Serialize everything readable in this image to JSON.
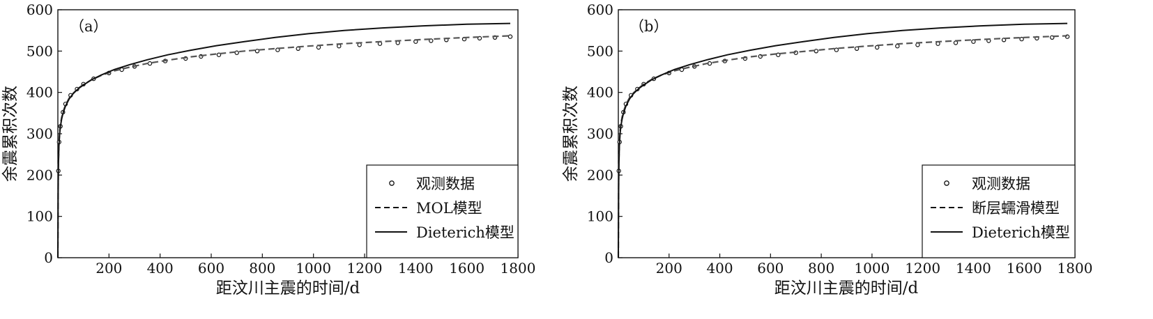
{
  "chart_data": [
    {
      "type": "line",
      "panel_label": "（a）",
      "xlabel": "距汶川主震的时间/d",
      "ylabel": "余震累积次数",
      "xlim": [
        0,
        1800
      ],
      "ylim": [
        0,
        600
      ],
      "x_ticks": [
        200,
        400,
        600,
        800,
        1000,
        1200,
        1400,
        1600,
        1800
      ],
      "y_ticks": [
        0,
        100,
        200,
        300,
        400,
        500,
        600
      ],
      "legend_position": "bottom-right",
      "series": [
        {
          "name": "观测数据",
          "style": "markers",
          "x": [
            2,
            5,
            10,
            20,
            30,
            50,
            75,
            100,
            140,
            200,
            250,
            300,
            360,
            420,
            500,
            560,
            630,
            700,
            780,
            860,
            940,
            1020,
            1100,
            1180,
            1260,
            1330,
            1400,
            1460,
            1520,
            1590,
            1650,
            1710,
            1770
          ],
          "y": [
            210,
            280,
            318,
            352,
            372,
            393,
            408,
            420,
            433,
            447,
            455,
            463,
            470,
            476,
            482,
            487,
            491,
            496,
            500,
            503,
            506,
            509,
            512,
            515,
            518,
            520,
            523,
            525,
            527,
            529,
            531,
            533,
            535
          ]
        },
        {
          "name": "MOL模型",
          "style": "dashed",
          "x": [
            1,
            2,
            4,
            7,
            10,
            15,
            20,
            30,
            45,
            60,
            80,
            100,
            130,
            170,
            220,
            280,
            350,
            430,
            520,
            620,
            730,
            850,
            980,
            1120,
            1270,
            1430,
            1600,
            1770
          ],
          "y": [
            160,
            225,
            275,
            305,
            322,
            340,
            352,
            370,
            387,
            398,
            410,
            419,
            430,
            441,
            452,
            461,
            470,
            478,
            486,
            493,
            500,
            506,
            512,
            518,
            523,
            528,
            533,
            537
          ]
        },
        {
          "name": "Dieterich模型",
          "style": "solid",
          "x": [
            1,
            2,
            4,
            7,
            10,
            15,
            20,
            30,
            45,
            60,
            80,
            100,
            130,
            170,
            220,
            280,
            350,
            430,
            520,
            620,
            730,
            850,
            980,
            1120,
            1270,
            1430,
            1600,
            1770
          ],
          "y": [
            150,
            215,
            270,
            300,
            318,
            336,
            349,
            367,
            385,
            397,
            409,
            418,
            430,
            442,
            455,
            467,
            479,
            491,
            502,
            513,
            523,
            533,
            542,
            550,
            556,
            561,
            565,
            567
          ]
        }
      ]
    },
    {
      "type": "line",
      "panel_label": "（b）",
      "xlabel": "距汶川主震的时间/d",
      "ylabel": "余震累积次数",
      "xlim": [
        0,
        1800
      ],
      "ylim": [
        0,
        600
      ],
      "x_ticks": [
        200,
        400,
        600,
        800,
        1000,
        1200,
        1400,
        1600,
        1800
      ],
      "y_ticks": [
        0,
        100,
        200,
        300,
        400,
        500,
        600
      ],
      "legend_position": "bottom-right",
      "series": [
        {
          "name": "观测数据",
          "style": "markers",
          "x": [
            2,
            5,
            10,
            20,
            30,
            50,
            75,
            100,
            140,
            200,
            250,
            300,
            360,
            420,
            500,
            560,
            630,
            700,
            780,
            860,
            940,
            1020,
            1100,
            1180,
            1260,
            1330,
            1400,
            1460,
            1520,
            1590,
            1650,
            1710,
            1770
          ],
          "y": [
            210,
            280,
            318,
            352,
            372,
            393,
            408,
            420,
            433,
            447,
            455,
            463,
            470,
            476,
            482,
            487,
            491,
            496,
            500,
            503,
            506,
            509,
            512,
            515,
            518,
            520,
            523,
            525,
            527,
            529,
            531,
            533,
            535
          ]
        },
        {
          "name": "断层蠕滑模型",
          "style": "dashed",
          "x": [
            1,
            2,
            4,
            7,
            10,
            15,
            20,
            30,
            45,
            60,
            80,
            100,
            130,
            170,
            220,
            280,
            350,
            430,
            520,
            620,
            730,
            850,
            980,
            1120,
            1270,
            1430,
            1600,
            1770
          ],
          "y": [
            165,
            228,
            277,
            306,
            323,
            341,
            353,
            371,
            388,
            399,
            410,
            420,
            431,
            442,
            452,
            461,
            470,
            478,
            486,
            493,
            499,
            506,
            512,
            518,
            523,
            528,
            533,
            537
          ]
        },
        {
          "name": "Dieterich模型",
          "style": "solid",
          "x": [
            1,
            2,
            4,
            7,
            10,
            15,
            20,
            30,
            45,
            60,
            80,
            100,
            130,
            170,
            220,
            280,
            350,
            430,
            520,
            620,
            730,
            850,
            980,
            1120,
            1270,
            1430,
            1600,
            1770
          ],
          "y": [
            150,
            215,
            270,
            300,
            318,
            336,
            349,
            367,
            385,
            397,
            409,
            418,
            430,
            442,
            455,
            467,
            479,
            491,
            502,
            513,
            523,
            533,
            542,
            550,
            556,
            561,
            565,
            567
          ]
        }
      ]
    }
  ]
}
